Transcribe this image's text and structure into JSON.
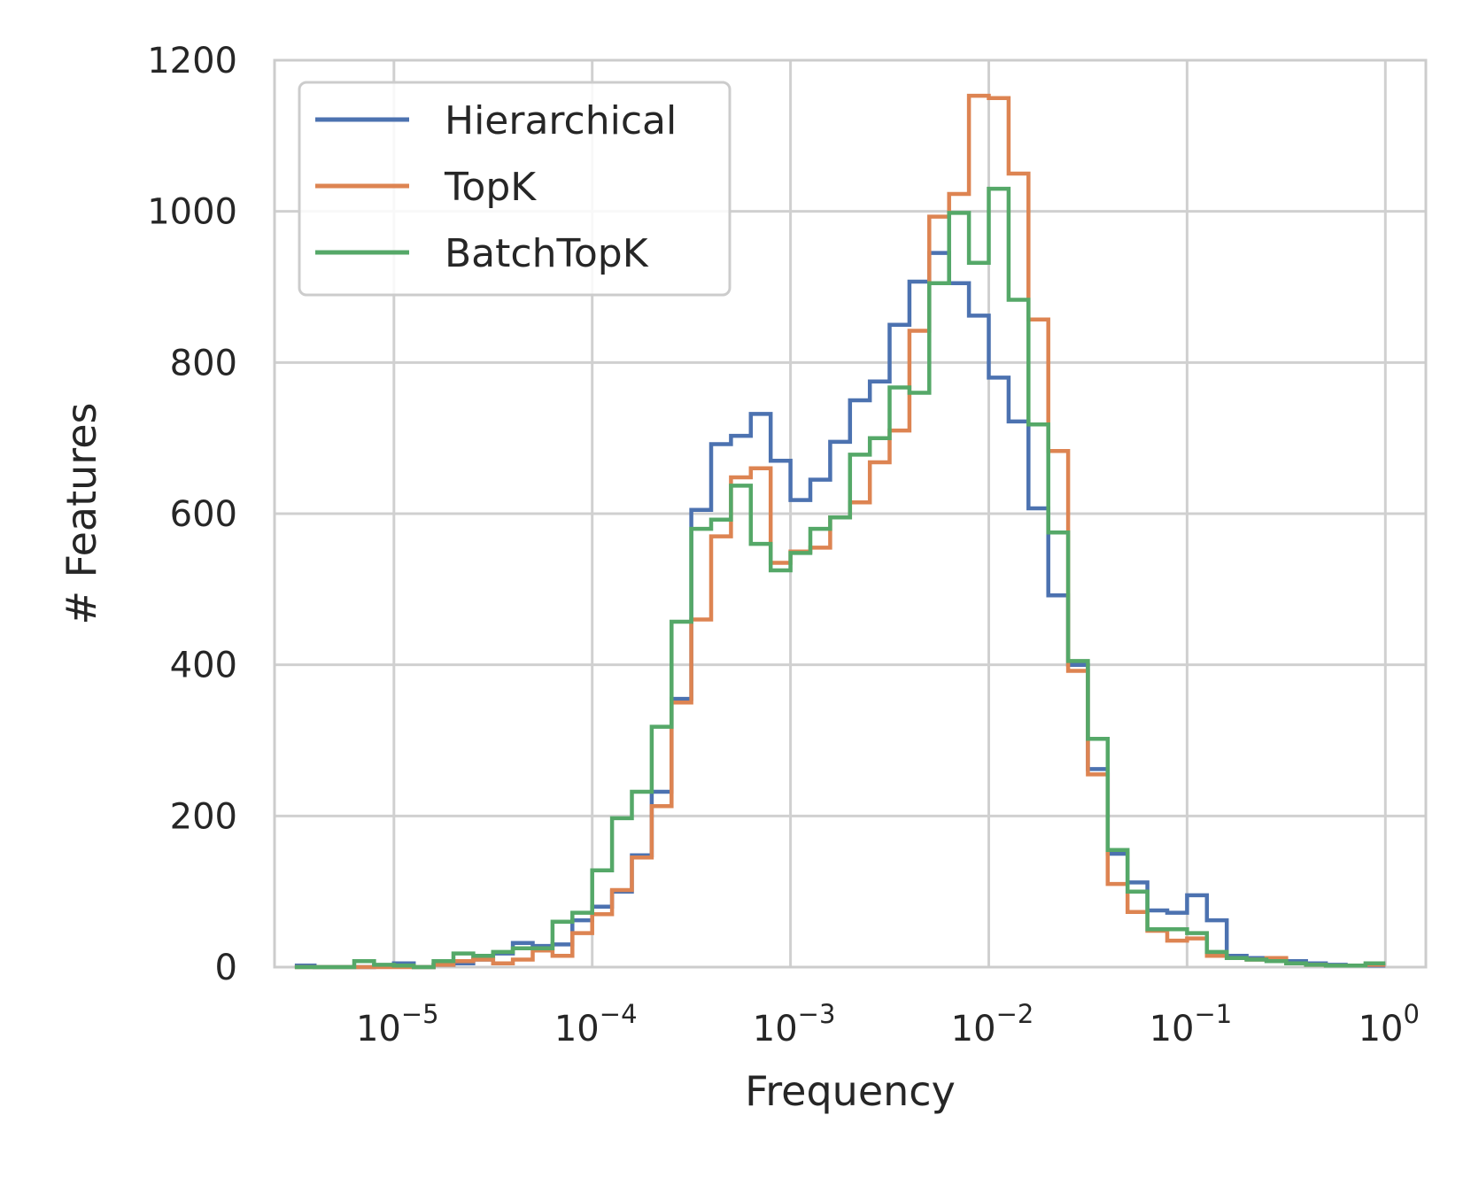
{
  "chart_data": {
    "type": "line",
    "style": "step-histogram",
    "xscale": "log",
    "xlabel": "Frequency",
    "ylabel": "# Features",
    "xlim": [
      2.5e-06,
      1.6
    ],
    "ylim": [
      0,
      1200
    ],
    "grid": true,
    "legend_position": "top-left",
    "x_ticks": [
      {
        "value": 1e-05,
        "base": "10",
        "exp": "−5"
      },
      {
        "value": 0.0001,
        "base": "10",
        "exp": "−4"
      },
      {
        "value": 0.001,
        "base": "10",
        "exp": "−3"
      },
      {
        "value": 0.01,
        "base": "10",
        "exp": "−2"
      },
      {
        "value": 0.1,
        "base": "10",
        "exp": "−1"
      },
      {
        "value": 1,
        "base": "10",
        "exp": "0"
      }
    ],
    "y_ticks": [
      {
        "value": 0,
        "label": "0"
      },
      {
        "value": 200,
        "label": "200"
      },
      {
        "value": 400,
        "label": "400"
      },
      {
        "value": 600,
        "label": "600"
      },
      {
        "value": 800,
        "label": "800"
      },
      {
        "value": 1000,
        "label": "1000"
      },
      {
        "value": 1200,
        "label": "1200"
      }
    ],
    "bin_edges_log10": [
      -5.5,
      -5.4,
      -5.3,
      -5.2,
      -5.1,
      -5.0,
      -4.9,
      -4.8,
      -4.7,
      -4.6,
      -4.5,
      -4.4,
      -4.3,
      -4.2,
      -4.1,
      -4.0,
      -3.9,
      -3.8,
      -3.7,
      -3.6,
      -3.5,
      -3.4,
      -3.3,
      -3.2,
      -3.1,
      -3.0,
      -2.9,
      -2.8,
      -2.7,
      -2.6,
      -2.5,
      -2.4,
      -2.3,
      -2.2,
      -2.1,
      -2.0,
      -1.9,
      -1.8,
      -1.7,
      -1.6,
      -1.5,
      -1.4,
      -1.3,
      -1.2,
      -1.1,
      -1.0,
      -0.9,
      -0.8,
      -0.7,
      -0.6,
      -0.5,
      -0.4,
      -0.3,
      -0.2,
      -0.1,
      0.0
    ],
    "series": [
      {
        "name": "Hierarchical",
        "color": "#4c72b0",
        "values": [
          2,
          0,
          0,
          0,
          2,
          5,
          0,
          3,
          5,
          10,
          18,
          32,
          28,
          30,
          62,
          80,
          100,
          148,
          232,
          355,
          605,
          692,
          703,
          732,
          670,
          618,
          645,
          695,
          750,
          775,
          850,
          907,
          945,
          905,
          862,
          780,
          722,
          607,
          492,
          400,
          262,
          150,
          112,
          75,
          72,
          95,
          62,
          15,
          12,
          10,
          8,
          5,
          3,
          2,
          2
        ]
      },
      {
        "name": "TopK",
        "color": "#dd8452",
        "values": [
          0,
          0,
          0,
          0,
          0,
          0,
          0,
          3,
          8,
          10,
          5,
          10,
          22,
          15,
          45,
          70,
          102,
          145,
          213,
          350,
          460,
          570,
          648,
          660,
          535,
          550,
          555,
          595,
          615,
          668,
          710,
          842,
          993,
          1023,
          1153,
          1150,
          1050,
          857,
          683,
          392,
          255,
          110,
          73,
          48,
          35,
          38,
          15,
          12,
          10,
          12,
          5,
          3,
          2,
          2,
          3
        ]
      },
      {
        "name": "BatchTopK",
        "color": "#55a868",
        "values": [
          0,
          0,
          0,
          8,
          3,
          2,
          0,
          8,
          18,
          15,
          20,
          25,
          25,
          60,
          72,
          128,
          197,
          232,
          318,
          457,
          580,
          592,
          637,
          560,
          525,
          548,
          580,
          595,
          678,
          700,
          767,
          760,
          905,
          998,
          932,
          1030,
          883,
          718,
          575,
          405,
          302,
          155,
          100,
          50,
          50,
          45,
          20,
          12,
          10,
          8,
          5,
          3,
          2,
          2,
          5
        ]
      }
    ]
  }
}
